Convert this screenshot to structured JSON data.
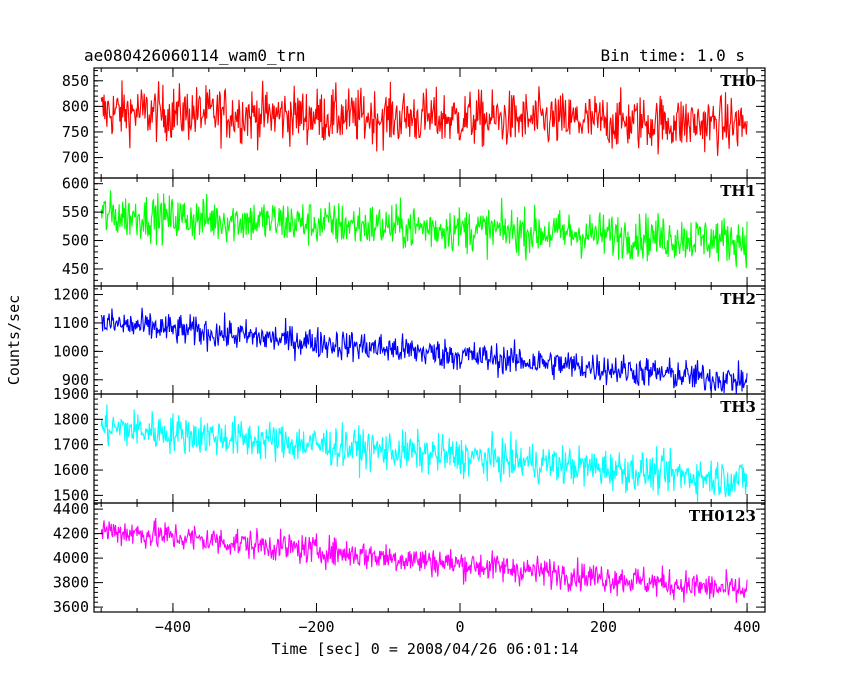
{
  "header": {
    "title": "ae080426060114_wam0_trn",
    "bin_time": "Bin time: 1.0 s"
  },
  "chart_data": {
    "type": "line",
    "xlabel": "Time [sec] 0 = 2008/04/26 06:01:14",
    "ylabel": "Counts/sec",
    "xlim": [
      -510,
      425
    ],
    "x_ticks": [
      -400,
      -200,
      0,
      200,
      400
    ],
    "x_tick_labels": [
      "−400",
      "−200",
      "0",
      "200",
      "400"
    ],
    "x_range": [
      -500,
      400
    ],
    "panels": [
      {
        "name": "TH0",
        "color": "#ff0000",
        "ylim": [
          660,
          875
        ],
        "y_ticks": [
          700,
          750,
          800,
          850
        ],
        "start_mean": 790,
        "end_mean": 765,
        "noise": 38
      },
      {
        "name": "TH1",
        "color": "#00ff00",
        "ylim": [
          420,
          610
        ],
        "y_ticks": [
          450,
          500,
          550,
          600
        ],
        "start_mean": 545,
        "end_mean": 500,
        "noise": 28
      },
      {
        "name": "TH2",
        "color": "#0000ff",
        "ylim": [
          850,
          1230
        ],
        "y_ticks": [
          900,
          1000,
          1100,
          1200
        ],
        "start_mean": 1100,
        "end_mean": 895,
        "noise": 38
      },
      {
        "name": "TH3",
        "color": "#00ffff",
        "ylim": [
          1470,
          1900
        ],
        "y_ticks": [
          1500,
          1600,
          1700,
          1800,
          1900
        ],
        "start_mean": 1770,
        "end_mean": 1560,
        "noise": 55
      },
      {
        "name": "TH0123",
        "color": "#ff00ff",
        "ylim": [
          3560,
          4450
        ],
        "y_ticks": [
          3600,
          3800,
          4000,
          4200,
          4400
        ],
        "start_mean": 4230,
        "end_mean": 3730,
        "noise": 85
      }
    ]
  }
}
